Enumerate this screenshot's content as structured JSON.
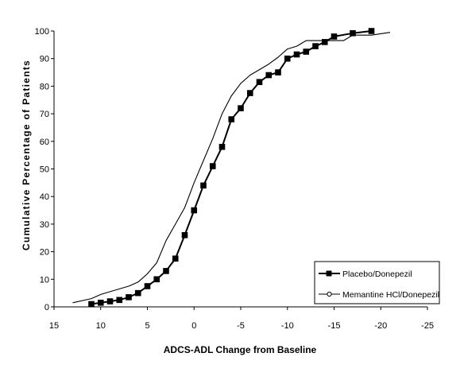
{
  "chart_data": {
    "type": "line",
    "xlabel": "ADCS-ADL Change from Baseline",
    "ylabel": "Cumulative Percentage of Patients",
    "xlim": [
      15,
      -25
    ],
    "ylim": [
      0,
      100
    ],
    "x_reversed": true,
    "x_ticks": [
      15,
      10,
      5,
      0,
      -5,
      -10,
      -15,
      -20,
      -25
    ],
    "y_ticks": [
      0,
      10,
      20,
      30,
      40,
      50,
      60,
      70,
      80,
      90,
      100
    ],
    "grid": false,
    "legend": "bottom-right",
    "series": [
      {
        "name": "Placebo/Donepezil",
        "marker": "square",
        "color": "#000000",
        "points": [
          [
            11,
            1
          ],
          [
            10,
            1.5
          ],
          [
            9,
            2
          ],
          [
            8,
            2.5
          ],
          [
            7,
            3.5
          ],
          [
            6,
            5
          ],
          [
            5,
            7.5
          ],
          [
            4,
            10
          ],
          [
            3,
            13
          ],
          [
            2,
            17.5
          ],
          [
            1,
            26
          ],
          [
            0,
            35
          ],
          [
            -1,
            44
          ],
          [
            -2,
            51
          ],
          [
            -3,
            58
          ],
          [
            -4,
            68
          ],
          [
            -5,
            72
          ],
          [
            -6,
            77.5
          ],
          [
            -7,
            81.5
          ],
          [
            -8,
            84
          ],
          [
            -9,
            85
          ],
          [
            -10,
            90
          ],
          [
            -11,
            91.5
          ],
          [
            -12,
            92.5
          ],
          [
            -13,
            94.5
          ],
          [
            -14,
            96
          ],
          [
            -15,
            98
          ],
          [
            -17,
            99.2
          ],
          [
            -19,
            100
          ]
        ]
      },
      {
        "name": "Memantine HCl/Donepezil",
        "marker": "circle",
        "color": "#000000",
        "points": [
          [
            13,
            1.5
          ],
          [
            11,
            3
          ],
          [
            10,
            4.5
          ],
          [
            9,
            5.5
          ],
          [
            8,
            6.5
          ],
          [
            7,
            7.5
          ],
          [
            6,
            9
          ],
          [
            5,
            12
          ],
          [
            4,
            16
          ],
          [
            3,
            24
          ],
          [
            2,
            30
          ],
          [
            1,
            36
          ],
          [
            0,
            45
          ],
          [
            -1,
            53
          ],
          [
            -2,
            61
          ],
          [
            -3,
            70
          ],
          [
            -4,
            76.5
          ],
          [
            -5,
            81
          ],
          [
            -6,
            84
          ],
          [
            -7,
            86
          ],
          [
            -8,
            88
          ],
          [
            -9,
            90.5
          ],
          [
            -10,
            93.5
          ],
          [
            -11,
            94.5
          ],
          [
            -12,
            96.5
          ],
          [
            -15,
            96.5
          ],
          [
            -16,
            96.5
          ],
          [
            -17,
            98.5
          ],
          [
            -19,
            98.5
          ],
          [
            -21,
            99.5
          ]
        ]
      }
    ]
  }
}
